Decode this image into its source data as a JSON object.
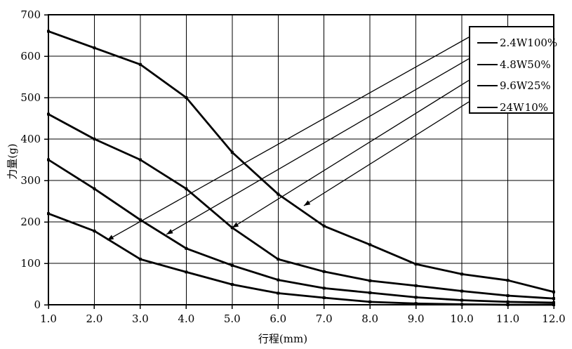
{
  "chart_data": {
    "type": "line",
    "title": "",
    "xlabel": "行程(mm)",
    "ylabel": "力量(g)",
    "xlim": [
      1,
      12
    ],
    "ylim": [
      0,
      700
    ],
    "grid": true,
    "x_ticks": [
      "1.0",
      "2.0",
      "3.0",
      "4.0",
      "5.0",
      "6.0",
      "7.0",
      "8.0",
      "9.0",
      "10.0",
      "11.0",
      "12.0"
    ],
    "y_ticks": [
      "0",
      "100",
      "200",
      "300",
      "400",
      "500",
      "600",
      "700"
    ],
    "x": [
      1,
      2,
      3,
      4,
      5,
      6,
      7,
      8,
      9,
      10,
      11,
      12
    ],
    "series": [
      {
        "name": "2.4W",
        "duty": "100%",
        "values": [
          220,
          178,
          110,
          79,
          49,
          28,
          17,
          7,
          3,
          1,
          0,
          0
        ]
      },
      {
        "name": "4.8W",
        "duty": "50%",
        "values": [
          350,
          280,
          205,
          136,
          95,
          60,
          40,
          29,
          18,
          11,
          7,
          5
        ]
      },
      {
        "name": "9.6W",
        "duty": "25%",
        "values": [
          460,
          400,
          350,
          280,
          186,
          110,
          80,
          58,
          46,
          33,
          22,
          15
        ]
      },
      {
        "name": "24W",
        "duty": "10%",
        "values": [
          660,
          620,
          580,
          500,
          368,
          267,
          190,
          145,
          98,
          74,
          59,
          31
        ]
      }
    ],
    "legend": {
      "position": "top-right",
      "entries": [
        {
          "label": "2.4W",
          "pct": "100%"
        },
        {
          "label": "4.8W",
          "pct": "50%"
        },
        {
          "label": "9.6W",
          "pct": "25%"
        },
        {
          "label": "24W",
          "pct": "10%"
        }
      ]
    },
    "arrows": [
      {
        "legend_index": 0,
        "target_series": "2.4W",
        "tip": {
          "x": 2.28,
          "y": 156
        }
      },
      {
        "legend_index": 1,
        "target_series": "4.8W",
        "tip": {
          "x": 3.57,
          "y": 170
        }
      },
      {
        "legend_index": 2,
        "target_series": "9.6W",
        "tip": {
          "x": 5.0,
          "y": 186
        }
      },
      {
        "legend_index": 3,
        "target_series": "24W",
        "tip": {
          "x": 6.56,
          "y": 239
        }
      }
    ],
    "colors": {
      "line": "#000000",
      "grid": "#000000",
      "background": "#ffffff",
      "marker": "#000000"
    }
  }
}
